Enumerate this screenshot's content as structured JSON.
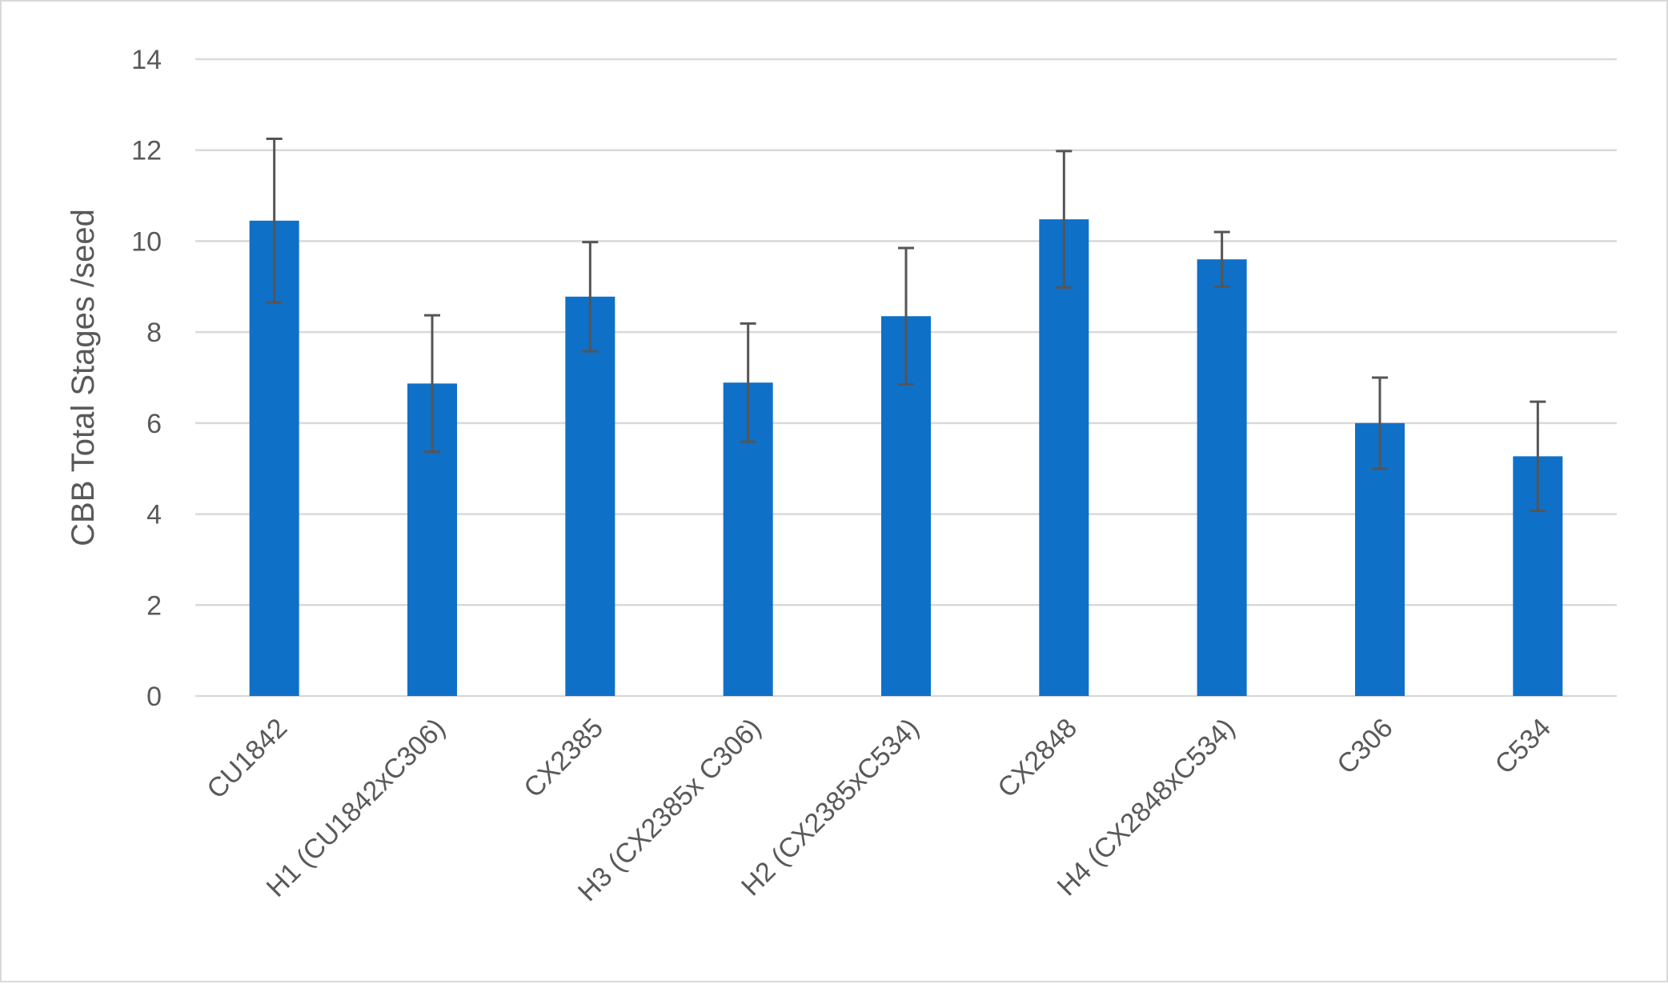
{
  "chart_data": {
    "type": "bar",
    "title": "",
    "xlabel": "",
    "ylabel": "CBB Total Stages /seed",
    "ylim": [
      0,
      14
    ],
    "yticks": [
      0,
      2,
      4,
      6,
      8,
      10,
      12,
      14
    ],
    "grid": true,
    "legend": "none",
    "bar_color": "#0f70c8",
    "categories": [
      "CU1842",
      "H1 (CU1842xC306)",
      "CX2385",
      "H3 (CX2385x C306)",
      "H2 (CX2385xC534)",
      "CX2848",
      "H4 (CX2848xC534)",
      "C306",
      "C534"
    ],
    "values": [
      10.45,
      6.87,
      8.78,
      6.89,
      8.35,
      10.48,
      9.6,
      6.0,
      5.27
    ],
    "error": [
      1.8,
      1.5,
      1.2,
      1.3,
      1.5,
      1.5,
      0.6,
      1.0,
      1.2
    ]
  }
}
